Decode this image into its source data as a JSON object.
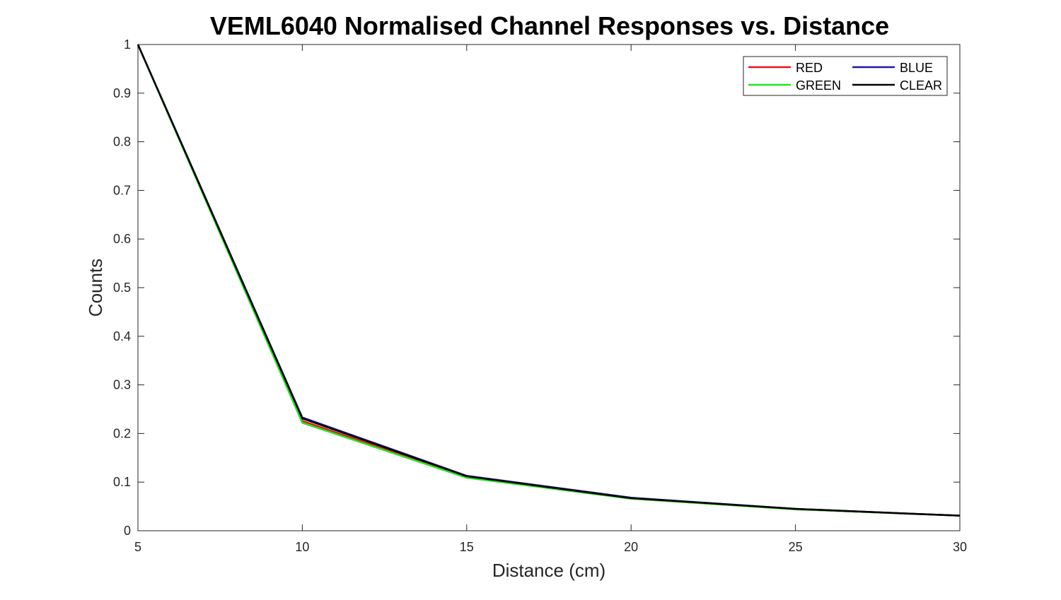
{
  "chart_data": {
    "type": "line",
    "title": "VEML6040 Normalised Channel Responses vs. Distance",
    "xlabel": "Distance (cm)",
    "ylabel": "Counts",
    "xlim": [
      5,
      30
    ],
    "ylim": [
      0,
      1
    ],
    "x": [
      5,
      10,
      15,
      20,
      25,
      30
    ],
    "x_ticks": [
      "5",
      "10",
      "15",
      "20",
      "25",
      "30"
    ],
    "y_ticks": [
      "0",
      "0.1",
      "0.2",
      "0.3",
      "0.4",
      "0.5",
      "0.6",
      "0.7",
      "0.8",
      "0.9",
      "1"
    ],
    "y_tick_values": [
      0,
      0.1,
      0.2,
      0.3,
      0.4,
      0.5,
      0.6,
      0.7,
      0.8,
      0.9,
      1
    ],
    "grid": false,
    "legend_position": "top-right",
    "series": [
      {
        "name": "RED",
        "color": "#e8141b",
        "values": [
          1,
          0.226,
          0.11,
          0.066,
          0.044,
          0.031
        ]
      },
      {
        "name": "GREEN",
        "color": "#1ee61e",
        "values": [
          1,
          0.222,
          0.109,
          0.066,
          0.044,
          0.031
        ]
      },
      {
        "name": "BLUE",
        "color": "#1a1aa6",
        "values": [
          1,
          0.233,
          0.113,
          0.068,
          0.045,
          0.031
        ]
      },
      {
        "name": "CLEAR",
        "color": "#000000",
        "values": [
          1,
          0.231,
          0.112,
          0.067,
          0.045,
          0.031
        ]
      }
    ]
  }
}
